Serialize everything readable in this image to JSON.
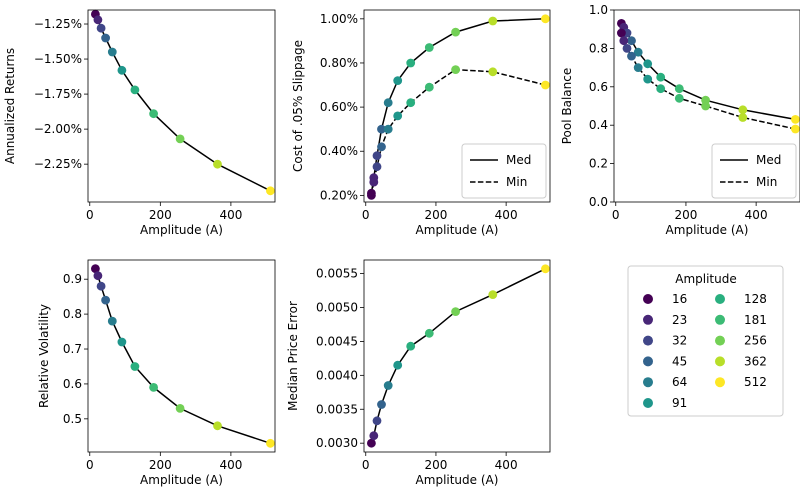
{
  "amplitude_colors": [
    "#440154",
    "#482677",
    "#404688",
    "#33638d",
    "#287d8e",
    "#1f968b",
    "#29af7f",
    "#3cbb75",
    "#73d055",
    "#b8de29",
    "#fde725"
  ],
  "chart_data": [
    {
      "id": "returns",
      "type": "line",
      "xlabel": "Amplitude (A)",
      "ylabel": "Annualized Returns",
      "xlim": [
        -5,
        525
      ],
      "ylim": [
        -2.52,
        -1.15
      ],
      "xticks": [
        0,
        200,
        400
      ],
      "xtick_labels": [
        "0",
        "200",
        "400"
      ],
      "yticks": [
        -1.25,
        -1.5,
        -1.75,
        -2.0,
        -2.25
      ],
      "ytick_labels": [
        "−1.25%",
        "−1.50%",
        "−1.75%",
        "−2.00%",
        "−2.25%"
      ],
      "x": [
        16,
        23,
        32,
        45,
        64,
        91,
        128,
        181,
        256,
        362,
        512
      ],
      "series": [
        {
          "style": "solid",
          "values": [
            -1.18,
            -1.22,
            -1.28,
            -1.35,
            -1.45,
            -1.58,
            -1.72,
            -1.89,
            -2.07,
            -2.25,
            -2.44
          ]
        }
      ]
    },
    {
      "id": "slippage",
      "type": "line",
      "xlabel": "Amplitude (A)",
      "ylabel": "Cost of .05% Slippage",
      "xlim": [
        -5,
        525
      ],
      "ylim": [
        0.17,
        1.04
      ],
      "xticks": [
        0,
        200,
        400
      ],
      "xtick_labels": [
        "0",
        "200",
        "400"
      ],
      "yticks": [
        0.2,
        0.4,
        0.6,
        0.8,
        1.0
      ],
      "ytick_labels": [
        "0.20%",
        "0.40%",
        "0.60%",
        "0.80%",
        "1.00%"
      ],
      "legend_position": "lower-right",
      "x": [
        16,
        23,
        32,
        45,
        64,
        91,
        128,
        181,
        256,
        362,
        512
      ],
      "series": [
        {
          "name": "Med",
          "style": "solid",
          "values": [
            0.21,
            0.28,
            0.38,
            0.5,
            0.62,
            0.72,
            0.8,
            0.87,
            0.94,
            0.99,
            1.0
          ]
        },
        {
          "name": "Min",
          "style": "dashed",
          "values": [
            0.2,
            0.26,
            0.33,
            0.42,
            0.5,
            0.56,
            0.62,
            0.69,
            0.77,
            0.76,
            0.7
          ]
        }
      ]
    },
    {
      "id": "pool",
      "type": "line",
      "xlabel": "Amplitude (A)",
      "ylabel": "Pool Balance",
      "xlim": [
        -5,
        525
      ],
      "ylim": [
        0,
        1.0
      ],
      "xticks": [
        0,
        200,
        400
      ],
      "xtick_labels": [
        "0",
        "200",
        "400"
      ],
      "yticks": [
        0,
        0.2,
        0.4,
        0.6,
        0.8,
        1.0
      ],
      "ytick_labels": [
        "0.0",
        "0.2",
        "0.4",
        "0.6",
        "0.8",
        "1.0"
      ],
      "legend_position": "lower-right",
      "x": [
        16,
        23,
        32,
        45,
        64,
        91,
        128,
        181,
        256,
        362,
        512
      ],
      "series": [
        {
          "name": "Med",
          "style": "solid",
          "values": [
            0.93,
            0.91,
            0.88,
            0.84,
            0.78,
            0.72,
            0.65,
            0.59,
            0.53,
            0.48,
            0.43
          ]
        },
        {
          "name": "Min",
          "style": "dashed",
          "values": [
            0.88,
            0.84,
            0.8,
            0.76,
            0.7,
            0.64,
            0.59,
            0.54,
            0.5,
            0.44,
            0.38
          ]
        }
      ]
    },
    {
      "id": "volatility",
      "type": "line",
      "xlabel": "Amplitude (A)",
      "ylabel": "Relative Volatility",
      "xlim": [
        -5,
        525
      ],
      "ylim": [
        0.405,
        0.955
      ],
      "xticks": [
        0,
        200,
        400
      ],
      "xtick_labels": [
        "0",
        "200",
        "400"
      ],
      "yticks": [
        0.5,
        0.6,
        0.7,
        0.8,
        0.9
      ],
      "ytick_labels": [
        "0.5",
        "0.6",
        "0.7",
        "0.8",
        "0.9"
      ],
      "x": [
        16,
        23,
        32,
        45,
        64,
        91,
        128,
        181,
        256,
        362,
        512
      ],
      "series": [
        {
          "style": "solid",
          "values": [
            0.93,
            0.91,
            0.88,
            0.84,
            0.78,
            0.72,
            0.65,
            0.59,
            0.53,
            0.48,
            0.43
          ]
        }
      ]
    },
    {
      "id": "price_error",
      "type": "line",
      "xlabel": "Amplitude (A)",
      "ylabel": "Median Price Error",
      "xlim": [
        -5,
        525
      ],
      "ylim": [
        0.00287,
        0.0057
      ],
      "xticks": [
        0,
        200,
        400
      ],
      "xtick_labels": [
        "0",
        "200",
        "400"
      ],
      "yticks": [
        0.003,
        0.0035,
        0.004,
        0.0045,
        0.005,
        0.0055
      ],
      "ytick_labels": [
        "0.0030",
        "0.0035",
        "0.0040",
        "0.0045",
        "0.0050",
        "0.0055"
      ],
      "x": [
        16,
        23,
        32,
        45,
        64,
        91,
        128,
        181,
        256,
        362,
        512
      ],
      "series": [
        {
          "style": "solid",
          "values": [
            0.003,
            0.00311,
            0.00333,
            0.00357,
            0.00385,
            0.00415,
            0.00443,
            0.00462,
            0.00494,
            0.00519,
            0.00557
          ]
        }
      ]
    }
  ],
  "amplitude_legend": {
    "title": "Amplitude",
    "entries": [
      "16",
      "23",
      "32",
      "45",
      "64",
      "91",
      "128",
      "181",
      "256",
      "362",
      "512"
    ]
  }
}
